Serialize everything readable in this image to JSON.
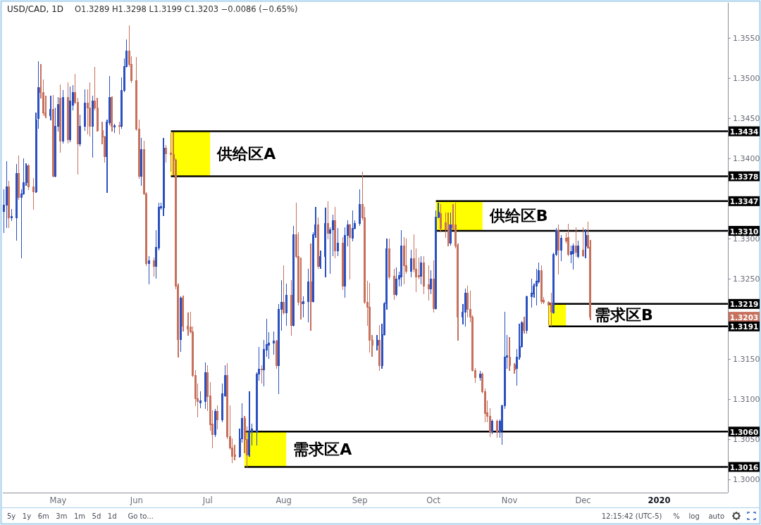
{
  "chart_data": {
    "type": "candlestick",
    "title": "USD/CAD, 1D",
    "subtitle": "O1.3289 H1.3298 L1.3199 C1.3203 −0.0086 (−0.65%)",
    "x": [
      "2019-04-09",
      "2019-04-10",
      "2019-04-11",
      "2019-04-12",
      "2019-04-14",
      "2019-04-15",
      "2019-04-16",
      "2019-04-17",
      "2019-04-18",
      "2019-04-19",
      "2019-04-21",
      "2019-04-22",
      "2019-04-23",
      "2019-04-24",
      "2019-04-25",
      "2019-04-26",
      "2019-04-28",
      "2019-04-29",
      "2019-04-30",
      "2019-05-01",
      "2019-05-02",
      "2019-05-03",
      "2019-05-05",
      "2019-05-06",
      "2019-05-07",
      "2019-05-08",
      "2019-05-09",
      "2019-05-10",
      "2019-05-12",
      "2019-05-13",
      "2019-05-14",
      "2019-05-15",
      "2019-05-16",
      "2019-05-17",
      "2019-05-19",
      "2019-05-20",
      "2019-05-21",
      "2019-05-22",
      "2019-05-23",
      "2019-05-24",
      "2019-05-26",
      "2019-05-27",
      "2019-05-28",
      "2019-05-29",
      "2019-05-30",
      "2019-05-31",
      "2019-06-02",
      "2019-06-03",
      "2019-06-04",
      "2019-06-05",
      "2019-06-06",
      "2019-06-07",
      "2019-06-09",
      "2019-06-10",
      "2019-06-11",
      "2019-06-12",
      "2019-06-13",
      "2019-06-14",
      "2019-06-16",
      "2019-06-17",
      "2019-06-18",
      "2019-06-19",
      "2019-06-20",
      "2019-06-21",
      "2019-06-23",
      "2019-06-24",
      "2019-06-25",
      "2019-06-26",
      "2019-06-27",
      "2019-06-28",
      "2019-06-30",
      "2019-07-01",
      "2019-07-02",
      "2019-07-03",
      "2019-07-04",
      "2019-07-05",
      "2019-07-07",
      "2019-07-08",
      "2019-07-09",
      "2019-07-10",
      "2019-07-11",
      "2019-07-12",
      "2019-07-14",
      "2019-07-15",
      "2019-07-16",
      "2019-07-17",
      "2019-07-18",
      "2019-07-19",
      "2019-07-21",
      "2019-07-22",
      "2019-07-23",
      "2019-07-24",
      "2019-07-25",
      "2019-07-26",
      "2019-07-28",
      "2019-07-29",
      "2019-07-30",
      "2019-07-31",
      "2019-08-01",
      "2019-08-02",
      "2019-08-04",
      "2019-08-05",
      "2019-08-06",
      "2019-08-07",
      "2019-08-08",
      "2019-08-09",
      "2019-08-11",
      "2019-08-12",
      "2019-08-13",
      "2019-08-14",
      "2019-08-15",
      "2019-08-16",
      "2019-08-18",
      "2019-08-19",
      "2019-08-20",
      "2019-08-21",
      "2019-08-22",
      "2019-08-23",
      "2019-08-25",
      "2019-08-26",
      "2019-08-27",
      "2019-08-28",
      "2019-08-29",
      "2019-08-30",
      "2019-09-01",
      "2019-09-02",
      "2019-09-03",
      "2019-09-04",
      "2019-09-05",
      "2019-09-06",
      "2019-09-08",
      "2019-09-09",
      "2019-09-10",
      "2019-09-11",
      "2019-09-12",
      "2019-09-13",
      "2019-09-15",
      "2019-09-16",
      "2019-09-17",
      "2019-09-18",
      "2019-09-19",
      "2019-09-20",
      "2019-09-22",
      "2019-09-23",
      "2019-09-24",
      "2019-09-25",
      "2019-09-26",
      "2019-09-27",
      "2019-09-29",
      "2019-09-30",
      "2019-10-01",
      "2019-10-02",
      "2019-10-03",
      "2019-10-04",
      "2019-10-06",
      "2019-10-07",
      "2019-10-08",
      "2019-10-09",
      "2019-10-10",
      "2019-10-11",
      "2019-10-13",
      "2019-10-14",
      "2019-10-15",
      "2019-10-16",
      "2019-10-17",
      "2019-10-18",
      "2019-10-20",
      "2019-10-21",
      "2019-10-22",
      "2019-10-23",
      "2019-10-24",
      "2019-10-25",
      "2019-10-27",
      "2019-10-28",
      "2019-10-29",
      "2019-10-30",
      "2019-10-31",
      "2019-11-01",
      "2019-11-03",
      "2019-11-04",
      "2019-11-05",
      "2019-11-06",
      "2019-11-07",
      "2019-11-08",
      "2019-11-10",
      "2019-11-11",
      "2019-11-12",
      "2019-11-13",
      "2019-11-14",
      "2019-11-15",
      "2019-11-17",
      "2019-11-18",
      "2019-11-19",
      "2019-11-20",
      "2019-11-21",
      "2019-11-22",
      "2019-11-24",
      "2019-11-25",
      "2019-11-26",
      "2019-11-27",
      "2019-11-28",
      "2019-11-29",
      "2019-12-01",
      "2019-12-02",
      "2019-12-03",
      "2019-12-04"
    ],
    "ohlc": [
      [
        1.3334,
        1.3361,
        1.3308,
        1.3342
      ],
      [
        1.3342,
        1.3396,
        1.3314,
        1.3365
      ],
      [
        1.3365,
        1.3372,
        1.3314,
        1.3326
      ],
      [
        1.3326,
        1.3337,
        1.3323,
        1.3328
      ],
      [
        1.3326,
        1.3393,
        1.3298,
        1.3381
      ],
      [
        1.3381,
        1.3403,
        1.3349,
        1.3352
      ],
      [
        1.3352,
        1.3361,
        1.3276,
        1.3356
      ],
      [
        1.3356,
        1.34,
        1.3355,
        1.337
      ],
      [
        1.337,
        1.3394,
        1.3367,
        1.3391
      ],
      [
        1.3391,
        1.3393,
        1.3361,
        1.3365
      ],
      [
        1.3365,
        1.3375,
        1.3337,
        1.3359
      ],
      [
        1.3359,
        1.3457,
        1.3358,
        1.3448
      ],
      [
        1.345,
        1.3521,
        1.3438,
        1.3488
      ],
      [
        1.3488,
        1.3517,
        1.3475,
        1.3482
      ],
      [
        1.3482,
        1.3498,
        1.3454,
        1.3457
      ],
      [
        1.3457,
        1.3478,
        1.3451,
        1.3453
      ],
      [
        1.3453,
        1.3478,
        1.3448,
        1.3461
      ],
      [
        1.3461,
        1.3479,
        1.3377,
        1.3378
      ],
      [
        1.3378,
        1.3463,
        1.3377,
        1.344
      ],
      [
        1.344,
        1.3476,
        1.3434,
        1.3467
      ],
      [
        1.3475,
        1.3492,
        1.3408,
        1.3422
      ],
      [
        1.3422,
        1.3485,
        1.3419,
        1.3476
      ],
      [
        1.3476,
        1.3494,
        1.3419,
        1.3424
      ],
      [
        1.3424,
        1.3489,
        1.3421,
        1.3472
      ],
      [
        1.3467,
        1.3491,
        1.346,
        1.3482
      ],
      [
        1.3482,
        1.3505,
        1.3468,
        1.347
      ],
      [
        1.347,
        1.3475,
        1.3381,
        1.3418
      ],
      [
        1.3418,
        1.3454,
        1.3416,
        1.344
      ],
      [
        1.344,
        1.3486,
        1.3435,
        1.3469
      ],
      [
        1.3469,
        1.3486,
        1.3431,
        1.3463
      ],
      [
        1.3463,
        1.3494,
        1.3428,
        1.344
      ],
      [
        1.344,
        1.3478,
        1.3402,
        1.3472
      ],
      [
        1.3472,
        1.3514,
        1.346,
        1.3463
      ],
      [
        1.3463,
        1.3475,
        1.3434,
        1.3435
      ],
      [
        1.3435,
        1.3445,
        1.3418,
        1.3427
      ],
      [
        1.3427,
        1.3428,
        1.3396,
        1.3403
      ],
      [
        1.3403,
        1.3448,
        1.3358,
        1.3445
      ],
      [
        1.3445,
        1.3502,
        1.3442,
        1.3476
      ],
      [
        1.3476,
        1.3477,
        1.3434,
        1.344
      ],
      [
        1.3439,
        1.3443,
        1.3432,
        1.3441
      ],
      [
        1.3441,
        1.3445,
        1.3431,
        1.344
      ],
      [
        1.344,
        1.3501,
        1.3438,
        1.3485
      ],
      [
        1.3485,
        1.3524,
        1.3483,
        1.3515
      ],
      [
        1.3515,
        1.3548,
        1.3514,
        1.3534
      ],
      [
        1.3534,
        1.3565,
        1.3515,
        1.3517
      ],
      [
        1.3517,
        1.3527,
        1.3495,
        1.3497
      ],
      [
        1.3497,
        1.3526,
        1.3435,
        1.3437
      ],
      [
        1.3437,
        1.3448,
        1.3375,
        1.3378
      ],
      [
        1.3378,
        1.3425,
        1.3367,
        1.3411
      ],
      [
        1.3411,
        1.3422,
        1.3355,
        1.3356
      ],
      [
        1.3356,
        1.3358,
        1.3267,
        1.3269
      ],
      [
        1.3269,
        1.3278,
        1.3244,
        1.3273
      ],
      [
        1.3273,
        1.3276,
        1.3254,
        1.3266
      ],
      [
        1.3266,
        1.331,
        1.3251,
        1.3289
      ],
      [
        1.3289,
        1.3345,
        1.3286,
        1.3339
      ],
      [
        1.3339,
        1.3345,
        1.3337,
        1.334
      ],
      [
        1.3339,
        1.3425,
        1.3329,
        1.3413
      ],
      [
        1.3413,
        1.3416,
        1.3396,
        1.3406
      ],
      [
        1.3407,
        1.3431,
        1.3384,
        1.3405
      ],
      [
        1.3405,
        1.3432,
        1.338,
        1.3398
      ],
      [
        1.3398,
        1.34,
        1.3238,
        1.3241
      ],
      [
        1.3241,
        1.3244,
        1.3153,
        1.3175
      ],
      [
        1.3175,
        1.3228,
        1.316,
        1.3226
      ],
      [
        1.3226,
        1.3229,
        1.3185,
        1.3191
      ],
      [
        1.3191,
        1.3208,
        1.318,
        1.3188
      ],
      [
        1.319,
        1.3209,
        1.3183,
        1.3184
      ],
      [
        1.3184,
        1.319,
        1.3128,
        1.313
      ],
      [
        1.313,
        1.3136,
        1.3092,
        1.3101
      ],
      [
        1.3101,
        1.3119,
        1.3078,
        1.3098
      ],
      [
        1.3096,
        1.311,
        1.309,
        1.3098
      ],
      [
        1.3098,
        1.3146,
        1.3089,
        1.3133
      ],
      [
        1.3133,
        1.3142,
        1.3086,
        1.3104
      ],
      [
        1.3104,
        1.3121,
        1.3062,
        1.3069
      ],
      [
        1.3069,
        1.3086,
        1.304,
        1.3056
      ],
      [
        1.3056,
        1.3088,
        1.3054,
        1.3085
      ],
      [
        1.3085,
        1.3092,
        1.3063,
        1.3075
      ],
      [
        1.3075,
        1.3119,
        1.3072,
        1.3107
      ],
      [
        1.3105,
        1.3142,
        1.3104,
        1.313
      ],
      [
        1.313,
        1.3145,
        1.3051,
        1.3054
      ],
      [
        1.3054,
        1.3092,
        1.3038,
        1.304
      ],
      [
        1.304,
        1.3051,
        1.3021,
        1.3029
      ],
      [
        1.3031,
        1.3043,
        1.3025,
        1.3029
      ],
      [
        1.3029,
        1.3063,
        1.3028,
        1.3051
      ],
      [
        1.3051,
        1.3095,
        1.3047,
        1.3076
      ],
      [
        1.3076,
        1.3079,
        1.3034,
        1.305
      ],
      [
        1.305,
        1.3066,
        1.3016,
        1.3031
      ],
      [
        1.3031,
        1.311,
        1.3029,
        1.306
      ],
      [
        1.306,
        1.3069,
        1.3043,
        1.3063
      ],
      [
        1.306,
        1.3133,
        1.3043,
        1.3132
      ],
      [
        1.3132,
        1.3165,
        1.3124,
        1.3138
      ],
      [
        1.3138,
        1.3142,
        1.312,
        1.3137
      ],
      [
        1.3137,
        1.3174,
        1.3117,
        1.3162
      ],
      [
        1.3162,
        1.32,
        1.3154,
        1.3168
      ],
      [
        1.3168,
        1.3183,
        1.3151,
        1.317
      ],
      [
        1.317,
        1.3184,
        1.3156,
        1.3173
      ],
      [
        1.3173,
        1.3174,
        1.3139,
        1.3142
      ],
      [
        1.3142,
        1.3218,
        1.3107,
        1.3212
      ],
      [
        1.3212,
        1.3248,
        1.3186,
        1.3221
      ],
      [
        1.3221,
        1.3267,
        1.3206,
        1.3208
      ],
      [
        1.3208,
        1.3244,
        1.3192,
        1.323
      ],
      [
        1.323,
        1.3248,
        1.318,
        1.3192
      ],
      [
        1.3192,
        1.3316,
        1.3191,
        1.3305
      ],
      [
        1.3305,
        1.3345,
        1.3276,
        1.3278
      ],
      [
        1.3278,
        1.3308,
        1.3218,
        1.3221
      ],
      [
        1.3221,
        1.3276,
        1.32,
        1.3219
      ],
      [
        1.3219,
        1.3228,
        1.3203,
        1.3222
      ],
      [
        1.3222,
        1.3262,
        1.3197,
        1.3246
      ],
      [
        1.3246,
        1.3294,
        1.3186,
        1.3222
      ],
      [
        1.3222,
        1.3308,
        1.3221,
        1.3305
      ],
      [
        1.3305,
        1.3339,
        1.3302,
        1.3317
      ],
      [
        1.3317,
        1.3326,
        1.3263,
        1.3266
      ],
      [
        1.3266,
        1.3285,
        1.3263,
        1.3278
      ],
      [
        1.3278,
        1.3338,
        1.3253,
        1.3319
      ],
      [
        1.3319,
        1.3346,
        1.33,
        1.3307
      ],
      [
        1.3307,
        1.3314,
        1.3257,
        1.3311
      ],
      [
        1.3311,
        1.333,
        1.3279,
        1.3323
      ],
      [
        1.3323,
        1.3339,
        1.3276,
        1.3285
      ],
      [
        1.3285,
        1.3313,
        1.3279,
        1.3295
      ],
      [
        1.3295,
        1.3302,
        1.3237,
        1.3241
      ],
      [
        1.3241,
        1.3314,
        1.3227,
        1.3304
      ],
      [
        1.3304,
        1.3323,
        1.3291,
        1.3317
      ],
      [
        1.3317,
        1.3318,
        1.325,
        1.3302
      ],
      [
        1.3301,
        1.3335,
        1.3297,
        1.3313
      ],
      [
        1.3313,
        1.3323,
        1.3312,
        1.3319
      ],
      [
        1.3319,
        1.3361,
        1.3317,
        1.3343
      ],
      [
        1.3343,
        1.3383,
        1.3324,
        1.3326
      ],
      [
        1.3326,
        1.3339,
        1.3219,
        1.3221
      ],
      [
        1.3221,
        1.3247,
        1.3192,
        1.3215
      ],
      [
        1.3215,
        1.3245,
        1.3159,
        1.3174
      ],
      [
        1.3174,
        1.318,
        1.3154,
        1.3168
      ],
      [
        1.3168,
        1.318,
        1.3162,
        1.3174
      ],
      [
        1.3174,
        1.3192,
        1.3136,
        1.3142
      ],
      [
        1.3142,
        1.3194,
        1.3139,
        1.3181
      ],
      [
        1.3181,
        1.3221,
        1.318,
        1.3219
      ],
      [
        1.3219,
        1.33,
        1.3212,
        1.3288
      ],
      [
        1.3288,
        1.33,
        1.325,
        1.3253
      ],
      [
        1.3253,
        1.3262,
        1.3225,
        1.3231
      ],
      [
        1.3231,
        1.3264,
        1.3229,
        1.325
      ],
      [
        1.325,
        1.3259,
        1.3241,
        1.3254
      ],
      [
        1.3253,
        1.331,
        1.3241,
        1.3291
      ],
      [
        1.3291,
        1.3302,
        1.3244,
        1.3267
      ],
      [
        1.3267,
        1.33,
        1.3257,
        1.326
      ],
      [
        1.326,
        1.3286,
        1.3253,
        1.3275
      ],
      [
        1.3275,
        1.3305,
        1.3259,
        1.3262
      ],
      [
        1.3262,
        1.3288,
        1.3234,
        1.3253
      ],
      [
        1.3254,
        1.3276,
        1.325,
        1.3253
      ],
      [
        1.3254,
        1.3278,
        1.3244,
        1.327
      ],
      [
        1.327,
        1.3278,
        1.3232,
        1.3241
      ],
      [
        1.3243,
        1.3267,
        1.3224,
        1.3238
      ],
      [
        1.3238,
        1.326,
        1.3232,
        1.325
      ],
      [
        1.325,
        1.3273,
        1.3209,
        1.3213
      ],
      [
        1.3213,
        1.3335,
        1.3212,
        1.3327
      ],
      [
        1.3327,
        1.3345,
        1.3326,
        1.3333
      ],
      [
        1.3331,
        1.3343,
        1.3309,
        1.3313
      ],
      [
        1.332,
        1.3332,
        1.3302,
        1.3311
      ],
      [
        1.3317,
        1.3332,
        1.3291,
        1.3295
      ],
      [
        1.3295,
        1.3332,
        1.3292,
        1.3317
      ],
      [
        1.3317,
        1.3343,
        1.3311,
        1.3314
      ],
      [
        1.3317,
        1.3345,
        1.3289,
        1.3291
      ],
      [
        1.3291,
        1.3294,
        1.3174,
        1.3203
      ],
      [
        1.3203,
        1.3218,
        1.3194,
        1.3209
      ],
      [
        1.3209,
        1.3238,
        1.3191,
        1.3232
      ],
      [
        1.3232,
        1.3241,
        1.3203,
        1.3212
      ],
      [
        1.3212,
        1.3235,
        1.3197,
        1.3203
      ],
      [
        1.3203,
        1.3204,
        1.3135,
        1.3136
      ],
      [
        1.3136,
        1.3139,
        1.3121,
        1.3127
      ],
      [
        1.3127,
        1.3135,
        1.3124,
        1.3132
      ],
      [
        1.3132,
        1.3133,
        1.3108,
        1.311
      ],
      [
        1.311,
        1.3113,
        1.3072,
        1.3083
      ],
      [
        1.3083,
        1.3098,
        1.3072,
        1.3079
      ],
      [
        1.3079,
        1.3089,
        1.3054,
        1.306
      ],
      [
        1.306,
        1.3075,
        1.3057,
        1.3073
      ],
      [
        1.3073,
        1.3075,
        1.3053,
        1.306
      ],
      [
        1.306,
        1.3075,
        1.3053,
        1.3073
      ],
      [
        1.3062,
        1.3093,
        1.3044,
        1.3092
      ],
      [
        1.3092,
        1.3209,
        1.3089,
        1.3153
      ],
      [
        1.3153,
        1.318,
        1.3139,
        1.3154
      ],
      [
        1.3153,
        1.3177,
        1.3136,
        1.3142
      ],
      [
        1.3143,
        1.3145,
        1.3133,
        1.3137
      ],
      [
        1.3139,
        1.3162,
        1.3118,
        1.3153
      ],
      [
        1.3153,
        1.3194,
        1.315,
        1.3166
      ],
      [
        1.3166,
        1.3197,
        1.3165,
        1.3196
      ],
      [
        1.3196,
        1.3203,
        1.3183,
        1.3186
      ],
      [
        1.3186,
        1.3229,
        1.3183,
        1.3228
      ],
      [
        1.3228,
        1.325,
        1.3215,
        1.3232
      ],
      [
        1.3232,
        1.3244,
        1.3227,
        1.3241
      ],
      [
        1.3241,
        1.3262,
        1.3218,
        1.3247
      ],
      [
        1.3247,
        1.327,
        1.3245,
        1.326
      ],
      [
        1.326,
        1.3267,
        1.3219,
        1.3222
      ],
      [
        1.3224,
        1.3227,
        1.3219,
        1.3221
      ],
      [
        1.3221,
        1.3222,
        1.3193,
        1.3218
      ],
      [
        1.3219,
        1.3232,
        1.3191,
        1.3209
      ],
      [
        1.3208,
        1.3282,
        1.3207,
        1.3281
      ],
      [
        1.3281,
        1.3313,
        1.3279,
        1.331
      ],
      [
        1.331,
        1.3317,
        1.3256,
        1.3286
      ],
      [
        1.3286,
        1.3304,
        1.3273,
        1.3301
      ],
      [
        1.3301,
        1.3307,
        1.3295,
        1.3297
      ],
      [
        1.3302,
        1.3318,
        1.3279,
        1.3281
      ],
      [
        1.3281,
        1.3291,
        1.327,
        1.3284
      ],
      [
        1.3282,
        1.3294,
        1.3262,
        1.3291
      ],
      [
        1.3291,
        1.3314,
        1.3278,
        1.3283
      ],
      [
        1.3278,
        1.3297,
        1.3276,
        1.3291
      ],
      [
        1.3286,
        1.3314,
        1.3278,
        1.3279
      ],
      [
        1.3291,
        1.3311,
        1.3276,
        1.3304
      ],
      [
        1.3304,
        1.3321,
        1.3289,
        1.3289
      ],
      [
        1.3289,
        1.3298,
        1.3199,
        1.3203
      ]
    ],
    "series": [
      {
        "type": "line",
        "name": "供给区A",
        "color": "#000000",
        "x": [
          "2019-06-16",
          "2019-07-02",
          "2020-01-29"
        ],
        "values": [
          1.3434,
          1.3434,
          1.3434
        ],
        "lower": [
          1.3378,
          1.3378,
          null
        ],
        "upper": [
          1.3434,
          1.3434,
          null
        ]
      },
      {
        "type": "line",
        "color": "#000000",
        "x": [
          "2019-06-16",
          "2020-01-29"
        ],
        "values": [
          1.3378,
          1.3378
        ]
      },
      {
        "type": "line",
        "name": "供给区B",
        "color": "#000000",
        "x": [
          "2019-10-02",
          "2019-10-21",
          "2020-01-29"
        ],
        "values": [
          1.3347,
          1.3347,
          1.3347
        ],
        "lower": [
          1.331,
          1.331,
          null
        ],
        "upper": [
          1.3347,
          1.3347,
          null
        ]
      },
      {
        "type": "line",
        "color": "#000000",
        "x": [
          "2019-10-02",
          "2020-01-29"
        ],
        "values": [
          1.331,
          1.331
        ]
      },
      {
        "type": "line",
        "name": "需求区A",
        "color": "#000000",
        "x": [
          "2019-07-16",
          "2019-08-02",
          "2020-01-29"
        ],
        "values": [
          1.306,
          1.306,
          1.306
        ],
        "lower": [
          1.3016,
          1.3016,
          null
        ],
        "upper": [
          1.306,
          1.306,
          null
        ]
      },
      {
        "type": "line",
        "color": "#000000",
        "x": [
          "2019-07-16",
          "2020-01-29"
        ],
        "values": [
          1.3016,
          1.3016
        ]
      },
      {
        "type": "line",
        "name": "需求区B",
        "color": "#000000",
        "x": [
          "2019-11-17",
          "2019-11-24",
          "2020-01-29"
        ],
        "values": [
          1.3219,
          1.3219,
          1.3219
        ],
        "lower": [
          1.3191,
          1.3191,
          null
        ],
        "upper": [
          1.3219,
          1.3219,
          null
        ]
      },
      {
        "type": "line",
        "color": "#000000",
        "x": [
          "2019-11-17",
          "2020-01-29"
        ],
        "values": [
          1.3191,
          1.3191
        ]
      }
    ],
    "xlim": [
      "2019-04-08T12:00",
      "2020-01-29"
    ],
    "xticks": [
      {
        "value": "2019-05-01",
        "label": "May"
      },
      {
        "value": "2019-06-02",
        "label": "Jun"
      },
      {
        "value": "2019-07-01",
        "label": "Jul"
      },
      {
        "value": "2019-08-01",
        "label": "Aug"
      },
      {
        "value": "2019-09-01",
        "label": "Sep"
      },
      {
        "value": "2019-10-01",
        "label": "Oct"
      },
      {
        "value": "2019-11-01",
        "label": "Nov"
      },
      {
        "value": "2019-12-01",
        "label": "Dec"
      },
      {
        "value": "2020-01-01",
        "label": "2020"
      }
    ],
    "ylim": [
      1.2984,
      1.3594
    ],
    "yticks": [
      {
        "value": 1.3,
        "label": "1.3000"
      },
      {
        "value": 1.305,
        "label": "1.3050"
      },
      {
        "value": 1.31,
        "label": "1.3100"
      },
      {
        "value": 1.315,
        "label": "1.3150"
      },
      {
        "value": 1.325,
        "label": "1.3250"
      },
      {
        "value": 1.33,
        "label": "1.3300"
      },
      {
        "value": 1.34,
        "label": "1.3400"
      },
      {
        "value": 1.345,
        "label": "1.3450"
      },
      {
        "value": 1.35,
        "label": "1.3500"
      },
      {
        "value": 1.355,
        "label": "1.3550"
      }
    ],
    "annotations": [
      {
        "text": "1.3434",
        "y": 1.3434
      },
      {
        "text": "1.3378",
        "y": 1.3378
      },
      {
        "text": "1.3347",
        "y": 1.3347
      },
      {
        "text": "1.3310",
        "y": 1.331
      },
      {
        "text": "1.3219",
        "y": 1.3219
      },
      {
        "text": "1.3203",
        "y": 1.3203
      },
      {
        "text": "1.3191",
        "y": 1.3191
      },
      {
        "text": "1.3060",
        "y": 1.306
      },
      {
        "text": "1.3016",
        "y": 1.3016
      },
      "5y   1y   6m   3m   1m   5d   1d     Go to...",
      "12:15:42 (UTC-5)     %    log    auto"
    ]
  }
}
